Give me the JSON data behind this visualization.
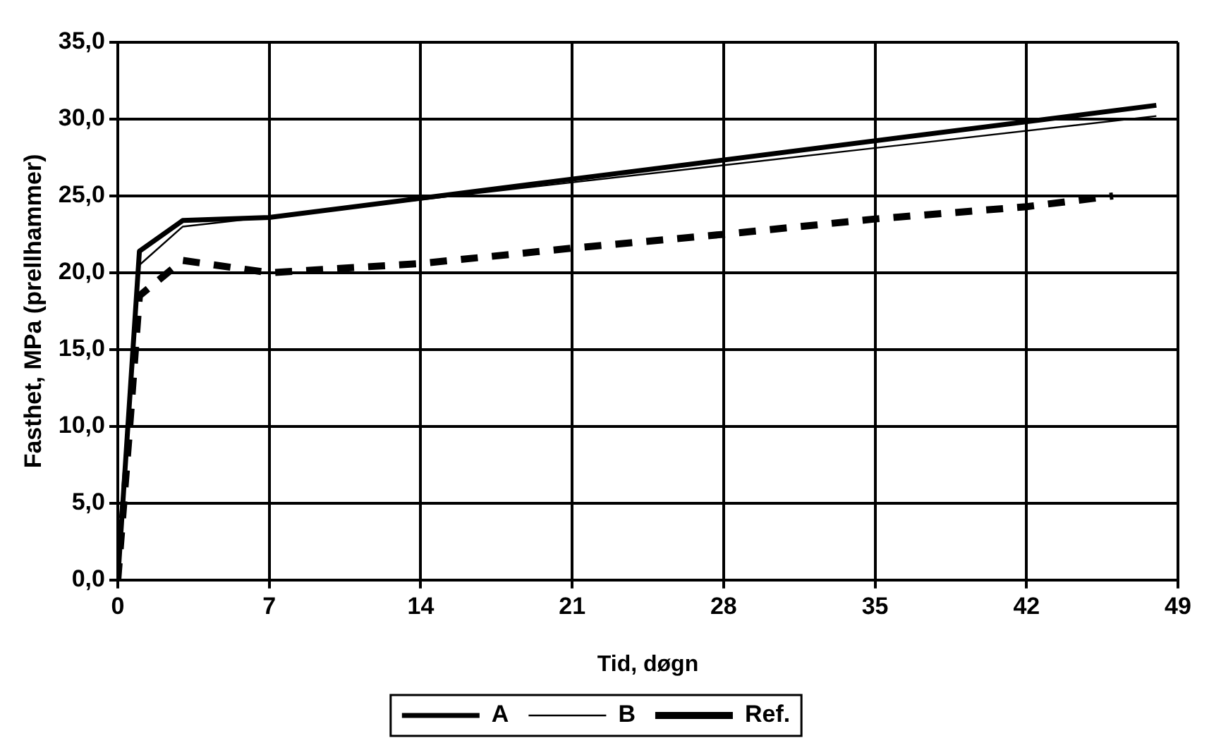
{
  "chart_data": {
    "type": "line",
    "xlabel": "Tid, døgn",
    "ylabel": "Fasthet, MPa (prellhammer)",
    "xlim": [
      0,
      49
    ],
    "xticks": [
      0,
      7,
      14,
      21,
      28,
      35,
      42,
      49
    ],
    "ylim": [
      0,
      35
    ],
    "yticks": [
      {
        "value": 0,
        "label": "0,0"
      },
      {
        "value": 5,
        "label": "5,0"
      },
      {
        "value": 10,
        "label": "10,0"
      },
      {
        "value": 15,
        "label": "15,0"
      },
      {
        "value": 20,
        "label": "20,0"
      },
      {
        "value": 25,
        "label": "25,0"
      },
      {
        "value": 30,
        "label": "30,0"
      },
      {
        "value": 35,
        "label": "35,0"
      }
    ],
    "grid": true,
    "legend": "bottom",
    "marker": "none",
    "series": [
      {
        "name": "A",
        "color": "#000000",
        "line_style": "solid",
        "x": [
          0,
          1,
          3,
          7,
          48
        ],
        "values": [
          0,
          21.4,
          23.4,
          23.6,
          30.9
        ]
      },
      {
        "name": "B",
        "color": "#000000",
        "line_style": "solid",
        "x": [
          0,
          1,
          3,
          48
        ],
        "values": [
          0,
          20.5,
          23.0,
          30.2
        ]
      },
      {
        "name": "Ref.",
        "color": "#000000",
        "line_style": "dashed",
        "x": [
          0,
          0.5,
          1,
          3,
          7,
          14,
          21,
          28,
          35,
          42,
          46
        ],
        "values": [
          0,
          9,
          18.5,
          20.8,
          20,
          20.6,
          21.6,
          22.5,
          23.5,
          24.3,
          25
        ]
      }
    ]
  }
}
